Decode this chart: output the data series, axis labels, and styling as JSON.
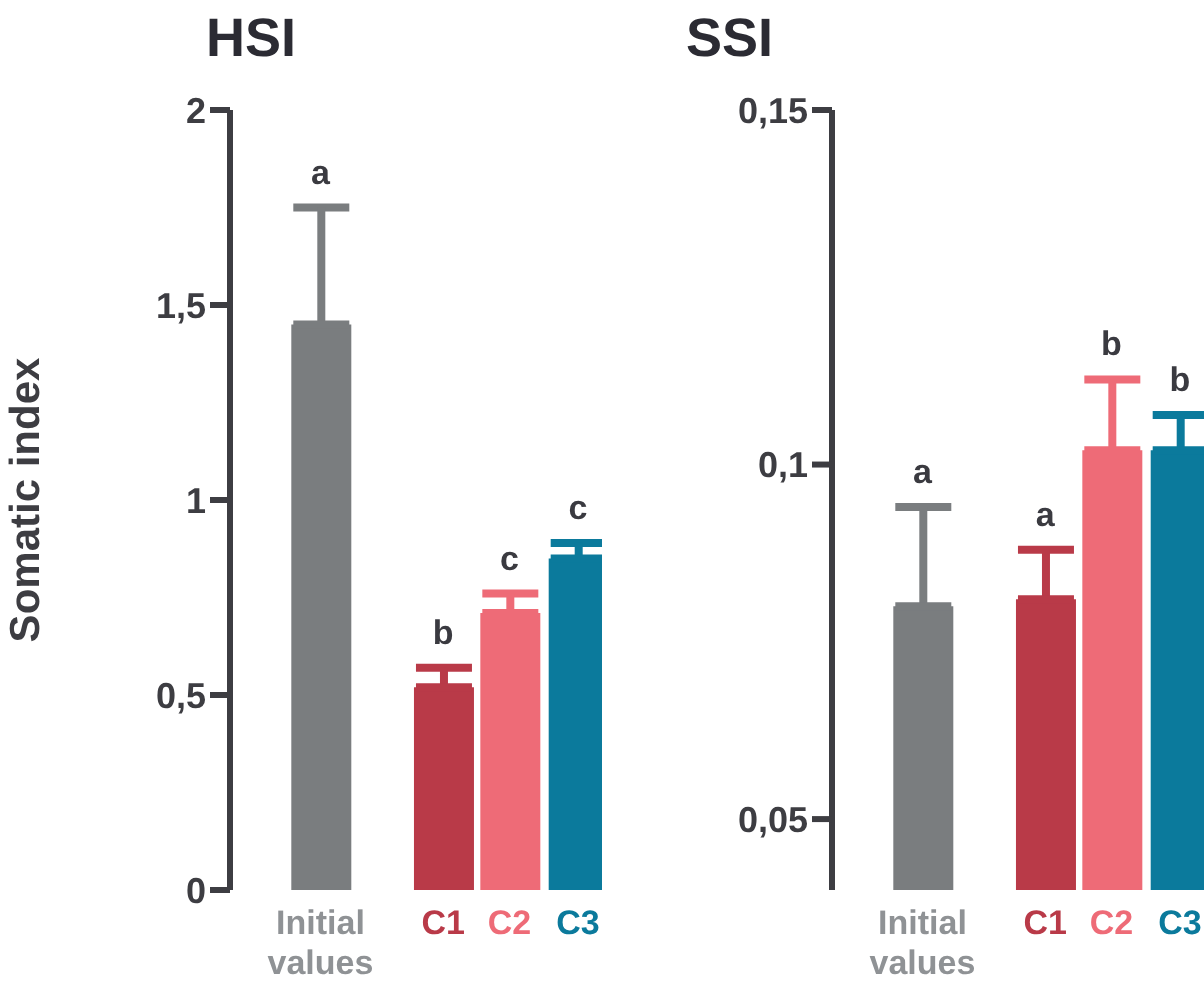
{
  "chart_data": [
    {
      "type": "bar",
      "title": "HSI",
      "ylabel": "Somatic index",
      "categories": [
        "Initial values",
        "C1",
        "C2",
        "C3"
      ],
      "values": [
        1.45,
        0.52,
        0.71,
        0.85
      ],
      "colors": [
        "#7a7d7f",
        "#b93a48",
        "#ee6b77",
        "#0b7a9c"
      ],
      "errors": [
        [
          1.45,
          1.75
        ],
        [
          0.52,
          0.57
        ],
        [
          0.71,
          0.76
        ],
        [
          0.85,
          0.89
        ]
      ],
      "ylim": [
        0,
        2
      ],
      "yticks": [
        0,
        {
          "value": 0.5,
          "label": "0,5"
        },
        1,
        {
          "value": 1.5,
          "label": "1,5"
        },
        2
      ],
      "grid": false,
      "legend": false,
      "annotations": [
        {
          "text": "a",
          "x": "Initial values",
          "y": 1.75
        },
        {
          "text": "b",
          "x": "C1",
          "y": 0.57
        },
        {
          "text": "c",
          "x": "C2",
          "y": 0.76
        },
        {
          "text": "c",
          "x": "C3",
          "y": 0.89
        }
      ]
    },
    {
      "type": "bar",
      "title": "SSI",
      "categories": [
        "Initial values",
        "C1",
        "C2",
        "C3"
      ],
      "values": [
        0.08,
        0.081,
        0.102,
        0.102
      ],
      "colors": [
        "#7a7d7f",
        "#b93a48",
        "#ee6b77",
        "#0b7a9c"
      ],
      "errors": [
        [
          0.08,
          0.094
        ],
        [
          0.081,
          0.088
        ],
        [
          0.102,
          0.112
        ],
        [
          0.102,
          0.107
        ]
      ],
      "ylim": [
        0.04,
        0.15
      ],
      "yticks": [
        {
          "value": 0.05,
          "label": "0,05"
        },
        {
          "value": 0.1,
          "label": "0,1"
        },
        {
          "value": 0.15,
          "label": "0,15"
        }
      ],
      "grid": false,
      "legend": false,
      "annotations": [
        {
          "text": "a",
          "x": "Initial values",
          "y": 0.094
        },
        {
          "text": "a",
          "x": "C1",
          "y": 0.088
        },
        {
          "text": "b",
          "x": "C2",
          "y": 0.112
        },
        {
          "text": "b",
          "x": "C3",
          "y": 0.107
        }
      ]
    }
  ]
}
